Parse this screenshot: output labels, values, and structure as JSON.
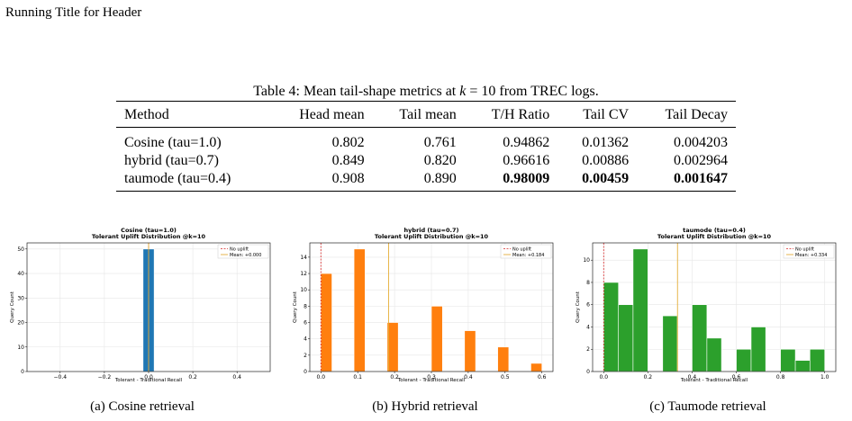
{
  "header": {
    "running_title": "Running Title for Header"
  },
  "table": {
    "caption_prefix": "Table 4: Mean tail-shape metrics at ",
    "caption_math": "k",
    "caption_eq": " = 10",
    "caption_suffix": " from TREC logs.",
    "columns": [
      "Method",
      "Head mean",
      "Tail mean",
      "T/H Ratio",
      "Tail CV",
      "Tail Decay"
    ],
    "rows": [
      [
        "Cosine (tau=1.0)",
        "0.802",
        "0.761",
        "0.94862",
        "0.01362",
        "0.004203"
      ],
      [
        "hybrid (tau=0.7)",
        "0.849",
        "0.820",
        "0.96616",
        "0.00886",
        "0.002964"
      ],
      [
        "taumode (tau=0.4)",
        "0.908",
        "0.890",
        "0.98009",
        "0.00459",
        "0.001647"
      ]
    ],
    "bold_row_index": 2,
    "bold_from_col": 3
  },
  "chart_data": [
    {
      "type": "bar",
      "title": "Cosine (tau=1.0)\nTolerant Uplift Distribution @k=10",
      "xlabel": "Tolerant - Traditional Recall",
      "ylabel": "Query Count",
      "xlim": [
        -0.55,
        0.55
      ],
      "ylim": [
        0,
        52.5
      ],
      "xticks": [
        -0.4,
        -0.2,
        0.0,
        0.2,
        0.4
      ],
      "xtick_labels": [
        "−0.4",
        "−0.2",
        "0.0",
        "0.2",
        "0.4"
      ],
      "yticks": [
        0,
        10,
        20,
        30,
        40,
        50
      ],
      "bins": [
        {
          "x0": -0.025,
          "x1": 0.025,
          "count": 50
        }
      ],
      "bar_color": "#1f77b4",
      "no_uplift_x": 0.0,
      "mean_x": 0.0,
      "legend": [
        "No uplift",
        "Mean: +0.000"
      ],
      "legend_position": "top-right",
      "grid": true
    },
    {
      "type": "bar",
      "title": "hybrid (tau=0.7)\nTolerant Uplift Distribution @k=10",
      "xlabel": "Tolerant - Traditional Recall",
      "ylabel": "Query Count",
      "xlim": [
        -0.03,
        0.63
      ],
      "ylim": [
        0,
        15.75
      ],
      "xticks": [
        0.0,
        0.1,
        0.2,
        0.3,
        0.4,
        0.5,
        0.6
      ],
      "xtick_labels": [
        "0.0",
        "0.1",
        "0.2",
        "0.3",
        "0.4",
        "0.5",
        "0.6"
      ],
      "yticks": [
        0,
        2,
        4,
        6,
        8,
        10,
        12,
        14
      ],
      "bins": [
        {
          "x0": 0.0,
          "x1": 0.03,
          "count": 12
        },
        {
          "x0": 0.09,
          "x1": 0.12,
          "count": 15
        },
        {
          "x0": 0.18,
          "x1": 0.21,
          "count": 6
        },
        {
          "x0": 0.3,
          "x1": 0.33,
          "count": 8
        },
        {
          "x0": 0.39,
          "x1": 0.42,
          "count": 5
        },
        {
          "x0": 0.48,
          "x1": 0.51,
          "count": 3
        },
        {
          "x0": 0.57,
          "x1": 0.6,
          "count": 1
        }
      ],
      "bar_color": "#ff7f0e",
      "no_uplift_x": 0.0,
      "mean_x": 0.184,
      "legend": [
        "No uplift",
        "Mean: +0.184"
      ],
      "legend_position": "top-right",
      "grid": true
    },
    {
      "type": "bar",
      "title": "taumode (tau=0.4)\nTolerant Uplift Distribution @k=10",
      "xlabel": "Tolerant - Traditional Recall",
      "ylabel": "Query Count",
      "xlim": [
        -0.05,
        1.05
      ],
      "ylim": [
        0,
        11.55
      ],
      "xticks": [
        0.0,
        0.2,
        0.4,
        0.6,
        0.8,
        1.0
      ],
      "xtick_labels": [
        "0.0",
        "0.2",
        "0.4",
        "0.6",
        "0.8",
        "1.0"
      ],
      "yticks": [
        0,
        2,
        4,
        6,
        8,
        10
      ],
      "bins": [
        {
          "x0": 0.0,
          "x1": 0.067,
          "count": 8
        },
        {
          "x0": 0.067,
          "x1": 0.133,
          "count": 6
        },
        {
          "x0": 0.133,
          "x1": 0.2,
          "count": 11
        },
        {
          "x0": 0.267,
          "x1": 0.333,
          "count": 5
        },
        {
          "x0": 0.4,
          "x1": 0.467,
          "count": 6
        },
        {
          "x0": 0.467,
          "x1": 0.533,
          "count": 3
        },
        {
          "x0": 0.6,
          "x1": 0.667,
          "count": 2
        },
        {
          "x0": 0.667,
          "x1": 0.733,
          "count": 4
        },
        {
          "x0": 0.8,
          "x1": 0.867,
          "count": 2
        },
        {
          "x0": 0.867,
          "x1": 0.933,
          "count": 1
        },
        {
          "x0": 0.933,
          "x1": 1.0,
          "count": 2
        }
      ],
      "bar_color": "#2ca02c",
      "no_uplift_x": 0.0,
      "mean_x": 0.334,
      "legend": [
        "No uplift",
        "Mean: +0.334"
      ],
      "legend_position": "top-right",
      "grid": true
    }
  ],
  "figure_captions": [
    "(a) Cosine retrieval",
    "(b) Hybrid retrieval",
    "(c) Taumode retrieval"
  ],
  "colors": {
    "no_uplift": "#d62728",
    "mean": "#e5ae38"
  }
}
